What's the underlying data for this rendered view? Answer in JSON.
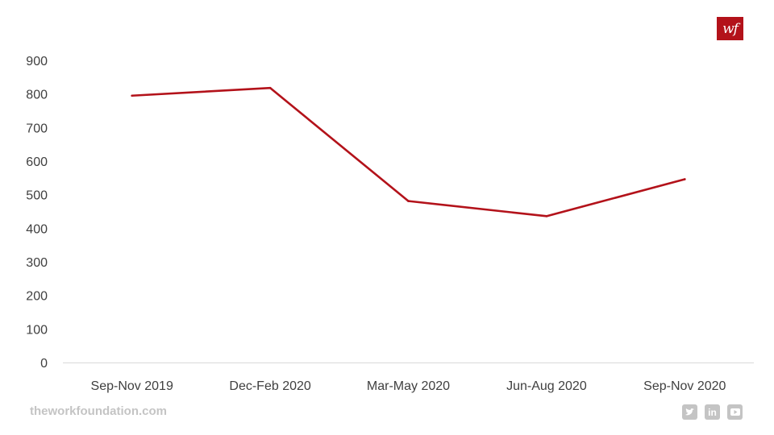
{
  "logo": {
    "text": "wf",
    "color": "#b3121a"
  },
  "footer": {
    "site": "theworkfoundation.com",
    "icons": [
      "twitter-icon",
      "linkedin-icon",
      "youtube-icon"
    ]
  },
  "chart_data": {
    "type": "line",
    "title": "",
    "xlabel": "",
    "ylabel": "",
    "categories": [
      "Sep-Nov 2019",
      "Dec-Feb 2020",
      "Mar-May 2020",
      "Jun-Aug 2020",
      "Sep-Nov 2020"
    ],
    "series": [
      {
        "values": [
          795,
          818,
          481,
          436,
          546
        ],
        "color": "#b3121a"
      }
    ],
    "ylim": [
      0,
      900
    ],
    "yticks": [
      0,
      100,
      200,
      300,
      400,
      500,
      600,
      700,
      800,
      900
    ],
    "grid": false,
    "legend": "none"
  }
}
